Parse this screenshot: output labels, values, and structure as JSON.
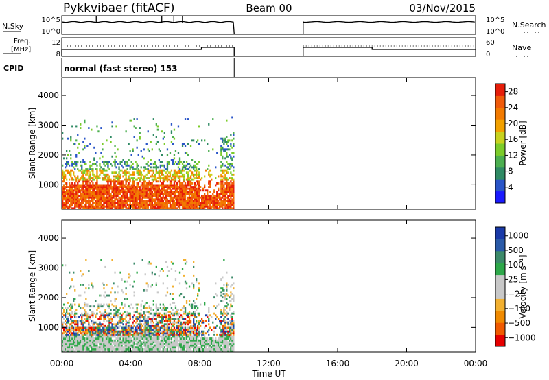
{
  "header": {
    "station": "Pykkvibaer (fitACF)",
    "beam": "Beam 00",
    "date": "03/Nov/2015"
  },
  "panels": {
    "nsky": {
      "label": "N.Sky",
      "left_ticks": [
        "10^5",
        "10^0"
      ],
      "right_ticks": [
        "10^5",
        "10^0"
      ],
      "right_label": "N.Search"
    },
    "freq": {
      "label_line1": "Freq.",
      "label_line2": "[MHz]",
      "left_ticks": [
        "12",
        "8"
      ],
      "right_ticks": [
        "60",
        "0"
      ],
      "right_label": "Nave"
    },
    "cpid": {
      "label": "CPID",
      "value": "normal (fast stereo) 153"
    }
  },
  "colors": {
    "power": [
      "#1a1aff",
      "#2a55c8",
      "#2f8a64",
      "#4caf50",
      "#7ccc2a",
      "#c8d21e",
      "#f2a100",
      "#f27a00",
      "#f05a0a",
      "#e61e0a"
    ],
    "velocity": [
      "#e60000",
      "#f05a00",
      "#f08a00",
      "#f2b030",
      "#c8c8c8",
      "#c8c8c8",
      "#2ea84a",
      "#3c8a6a",
      "#2a5aa8",
      "#1a3aa8"
    ]
  },
  "chart_data": [
    {
      "type": "heatmap",
      "title": "",
      "ylabel": "Slant Range [km]",
      "xlabel": "Time UT",
      "xlim": [
        0,
        24
      ],
      "ylim": [
        180,
        4600
      ],
      "x_tick_labels": [
        "00:00",
        "04:00",
        "08:00",
        "12:00",
        "16:00",
        "20:00",
        "00:00"
      ],
      "y_tick_labels": [
        "1000",
        "2000",
        "3000",
        "4000"
      ],
      "colorbar": {
        "label": "Power [dB]",
        "ticks": [
          "4",
          "8",
          "12",
          "16",
          "20",
          "24",
          "28"
        ],
        "range": [
          0,
          30
        ]
      },
      "data_gaps_hours": [
        [
          10,
          14
        ]
      ]
    },
    {
      "type": "heatmap",
      "title": "",
      "ylabel": "Slant Range [km]",
      "xlabel": "Time UT",
      "xlim": [
        0,
        24
      ],
      "ylim": [
        180,
        4600
      ],
      "x_tick_labels": [
        "00:00",
        "04:00",
        "08:00",
        "12:00",
        "16:00",
        "20:00",
        "00:00"
      ],
      "y_tick_labels": [
        "1000",
        "2000",
        "3000",
        "4000"
      ],
      "colorbar": {
        "label": "Velocity [m s⁻¹]",
        "ticks": [
          "1000",
          "500",
          "100",
          "25",
          "−25",
          "−100",
          "−500",
          "−1000"
        ]
      },
      "data_gaps_hours": [
        [
          10,
          14
        ]
      ]
    }
  ],
  "axis": {
    "time_label": "Time UT"
  }
}
